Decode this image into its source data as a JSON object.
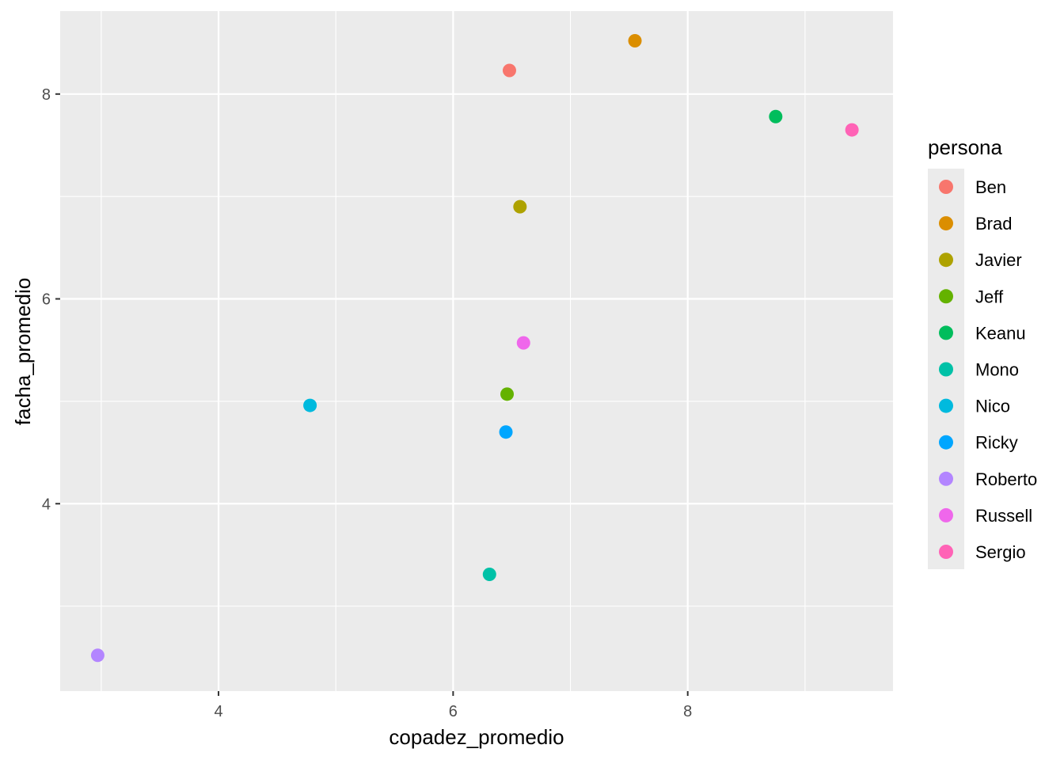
{
  "chart_data": {
    "type": "scatter",
    "title": "",
    "xlabel": "copadez_promedio",
    "ylabel": "facha_promedio",
    "xlim": [
      2.65,
      9.75
    ],
    "ylim": [
      2.17,
      8.81
    ],
    "xticks": [
      4,
      6,
      8
    ],
    "yticks": [
      4,
      6,
      8
    ],
    "x_tick_labels": [
      "4",
      "6",
      "8"
    ],
    "y_tick_labels": [
      "4",
      "6",
      "8"
    ],
    "grid": true,
    "legend": {
      "title": "persona",
      "placement": "right"
    },
    "series": [
      {
        "name": "Ben",
        "color": "#F8766D",
        "x": 6.48,
        "y": 8.23
      },
      {
        "name": "Brad",
        "color": "#DB8E00",
        "x": 7.55,
        "y": 8.52
      },
      {
        "name": "Javier",
        "color": "#AEA200",
        "x": 6.57,
        "y": 6.9
      },
      {
        "name": "Jeff",
        "color": "#64B200",
        "x": 6.46,
        "y": 5.07
      },
      {
        "name": "Keanu",
        "color": "#00BD5C",
        "x": 8.75,
        "y": 7.78
      },
      {
        "name": "Mono",
        "color": "#00C1A7",
        "x": 6.31,
        "y": 3.31
      },
      {
        "name": "Nico",
        "color": "#00BADE",
        "x": 4.78,
        "y": 4.96
      },
      {
        "name": "Ricky",
        "color": "#00A6FF",
        "x": 6.45,
        "y": 4.7
      },
      {
        "name": "Roberto",
        "color": "#B385FF",
        "x": 2.97,
        "y": 2.52
      },
      {
        "name": "Russell",
        "color": "#EF67EB",
        "x": 6.6,
        "y": 5.57
      },
      {
        "name": "Sergio",
        "color": "#FF63B6",
        "x": 9.4,
        "y": 7.65
      }
    ]
  }
}
